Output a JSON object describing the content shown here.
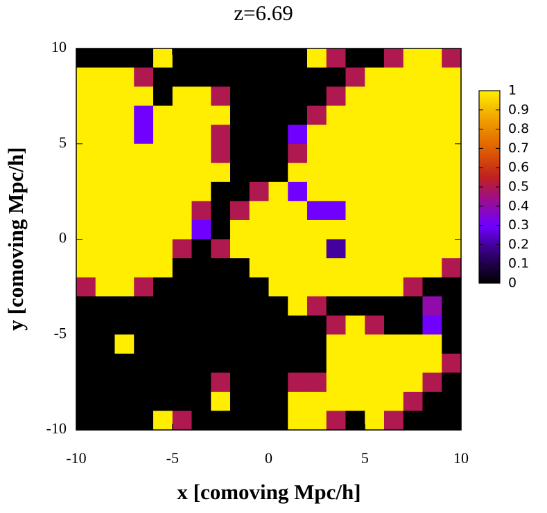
{
  "chart_data": {
    "type": "heatmap",
    "title": "z=6.69",
    "x_label": "x [comoving Mpc/h]",
    "y_label": "y [comoving Mpc/h]",
    "xlim": [
      -10,
      10
    ],
    "ylim": [
      -10,
      10
    ],
    "xticks": [
      -10,
      -5,
      0,
      5,
      10
    ],
    "yticks": [
      -10,
      -5,
      0,
      5,
      10
    ],
    "clim": [
      0,
      1
    ],
    "cticks": [
      0,
      0.1,
      0.2,
      0.3,
      0.4,
      0.5,
      0.6,
      0.7,
      0.8,
      0.9,
      1
    ],
    "colormap": [
      [
        0,
        "#000000"
      ],
      [
        0.15,
        "#300070"
      ],
      [
        0.3,
        "#7000ff"
      ],
      [
        0.45,
        "#a01080"
      ],
      [
        0.55,
        "#c02020"
      ],
      [
        0.7,
        "#e06000"
      ],
      [
        0.85,
        "#f0a000"
      ],
      [
        1,
        "#ffee00"
      ]
    ],
    "z": [
      [
        0,
        0,
        0,
        0,
        1,
        0,
        0,
        0,
        0,
        0,
        0,
        0,
        1,
        0.5,
        0,
        0,
        0.5,
        1,
        1,
        0.5
      ],
      [
        1,
        1,
        1,
        0.5,
        0,
        0,
        0,
        0,
        0,
        0,
        0,
        0,
        0,
        0,
        0.5,
        1,
        1,
        1,
        1,
        1
      ],
      [
        1,
        1,
        1,
        1,
        0,
        1,
        1,
        0.5,
        0,
        0,
        0,
        0,
        0,
        0.5,
        1,
        1,
        1,
        1,
        1,
        1
      ],
      [
        1,
        1,
        1,
        0.3,
        1,
        1,
        1,
        1,
        0,
        0,
        0,
        0,
        0.5,
        1,
        1,
        1,
        1,
        1,
        1,
        1
      ],
      [
        1,
        1,
        1,
        0.3,
        1,
        1,
        1,
        0.5,
        0,
        0,
        0,
        0.3,
        1,
        1,
        1,
        1,
        1,
        1,
        1,
        1
      ],
      [
        1,
        1,
        1,
        1,
        1,
        1,
        1,
        0.5,
        0,
        0,
        0,
        0.5,
        1,
        1,
        1,
        1,
        1,
        1,
        1,
        1
      ],
      [
        1,
        1,
        1,
        1,
        1,
        1,
        1,
        1,
        0,
        0,
        0,
        1,
        1,
        1,
        1,
        1,
        1,
        1,
        1,
        1
      ],
      [
        1,
        1,
        1,
        1,
        1,
        1,
        1,
        0,
        0,
        0.5,
        1,
        0.3,
        1,
        1,
        1,
        1,
        1,
        1,
        1,
        1
      ],
      [
        1,
        1,
        1,
        1,
        1,
        1,
        0.5,
        0,
        0.5,
        1,
        1,
        1,
        0.3,
        0.3,
        1,
        1,
        1,
        1,
        1,
        1
      ],
      [
        1,
        1,
        1,
        1,
        1,
        1,
        0.3,
        0,
        1,
        1,
        1,
        1,
        1,
        1,
        1,
        1,
        1,
        1,
        1,
        1
      ],
      [
        1,
        1,
        1,
        1,
        1,
        0.5,
        0,
        0.5,
        1,
        1,
        1,
        1,
        1,
        0.2,
        1,
        1,
        1,
        1,
        1,
        1
      ],
      [
        1,
        1,
        1,
        1,
        1,
        0,
        0,
        0,
        0,
        1,
        1,
        1,
        1,
        1,
        1,
        1,
        1,
        1,
        1,
        0.5
      ],
      [
        0.5,
        1,
        1,
        0.5,
        0,
        0,
        0,
        0,
        0,
        0,
        1,
        1,
        1,
        1,
        1,
        1,
        1,
        0.5,
        0,
        0
      ],
      [
        0,
        0,
        0,
        0,
        0,
        0,
        0,
        0,
        0,
        0,
        0,
        1,
        0.5,
        0,
        0,
        0,
        0,
        0,
        0.4,
        0
      ],
      [
        0,
        0,
        0,
        0,
        0,
        0,
        0,
        0,
        0,
        0,
        0,
        0,
        0,
        0.5,
        1,
        0.5,
        0,
        0,
        0.3,
        0
      ],
      [
        0,
        0,
        1,
        0,
        0,
        0,
        0,
        0,
        0,
        0,
        0,
        0,
        0,
        1,
        1,
        1,
        1,
        1,
        1,
        0
      ],
      [
        0,
        0,
        0,
        0,
        0,
        0,
        0,
        0,
        0,
        0,
        0,
        0,
        0,
        1,
        1,
        1,
        1,
        1,
        1,
        0.5
      ],
      [
        0,
        0,
        0,
        0,
        0,
        0,
        0,
        0.5,
        0,
        0,
        0,
        0.5,
        0.5,
        1,
        1,
        1,
        1,
        1,
        0.5,
        0
      ],
      [
        0,
        0,
        0,
        0,
        0,
        0,
        0,
        1,
        0,
        0,
        0,
        1,
        1,
        1,
        1,
        1,
        1,
        0.5,
        0,
        0
      ],
      [
        0,
        0,
        0,
        0,
        1,
        0.5,
        0,
        0,
        0,
        0,
        0,
        1,
        1,
        0.5,
        0,
        1,
        0.5,
        0,
        0,
        0
      ]
    ]
  }
}
